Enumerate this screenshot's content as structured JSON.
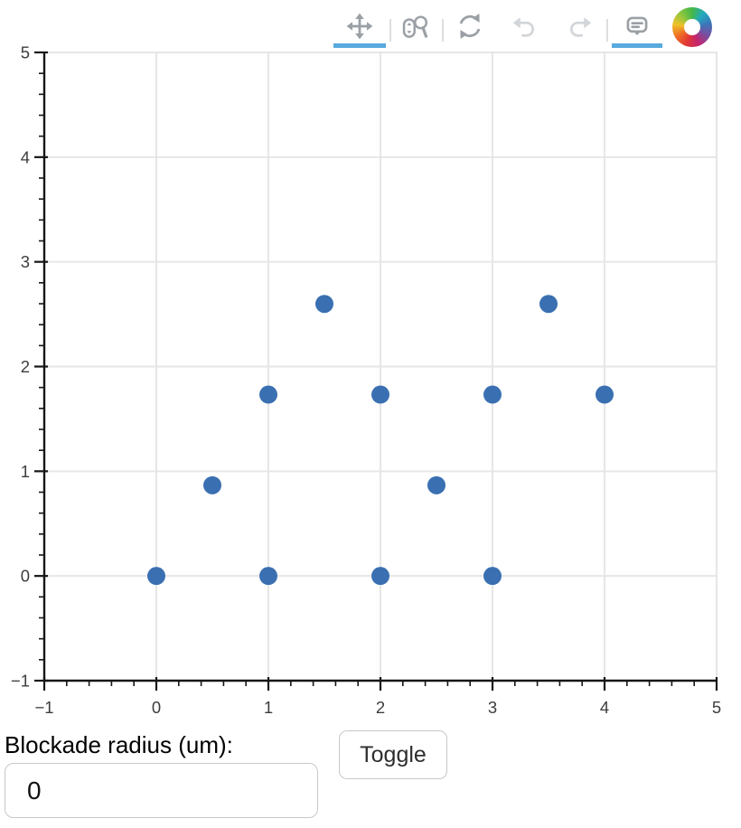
{
  "toolbar": {
    "active_accent": "#58a9dc",
    "tools": [
      {
        "name": "pan",
        "active": true,
        "enabled": true
      },
      {
        "name": "wheel-zoom",
        "active": false,
        "enabled": true
      },
      {
        "name": "reset",
        "active": false,
        "enabled": true
      },
      {
        "name": "undo",
        "active": false,
        "enabled": false
      },
      {
        "name": "redo",
        "active": false,
        "enabled": false
      },
      {
        "name": "hover",
        "active": true,
        "enabled": true
      }
    ],
    "logo": "bokeh-logo"
  },
  "chart_data": {
    "type": "scatter",
    "title": "",
    "xlabel": "",
    "ylabel": "",
    "x": [
      0,
      1,
      2,
      3,
      0.5,
      2.5,
      1,
      2,
      3,
      4,
      1.5,
      3.5
    ],
    "y": [
      0,
      0,
      0,
      0,
      0.866,
      0.866,
      1.732,
      1.732,
      1.732,
      1.732,
      2.598,
      2.598
    ],
    "xlim": [
      -1,
      5
    ],
    "ylim": [
      -1,
      5
    ],
    "xticks": [
      -1,
      0,
      1,
      2,
      3,
      4,
      5
    ],
    "yticks": [
      -1,
      0,
      1,
      2,
      3,
      4,
      5
    ],
    "xtick_labels": [
      "−1",
      "0",
      "1",
      "2",
      "3",
      "4",
      "5"
    ],
    "ytick_labels": [
      "−1",
      "0",
      "1",
      "2",
      "3",
      "4",
      "5"
    ],
    "minor_tick_step": 0.2,
    "grid": true,
    "legend": null,
    "point_color": "#3a70b2",
    "point_radius": 10
  },
  "controls": {
    "blockade_label": "Blockade radius (um):",
    "radius_input_value": "0",
    "toggle_button_label": "Toggle"
  },
  "colors": {
    "grid": "#e6e6e6",
    "frame": "#e6e6e6",
    "axis": "#161616",
    "tick_label": "#3d3d3d"
  }
}
